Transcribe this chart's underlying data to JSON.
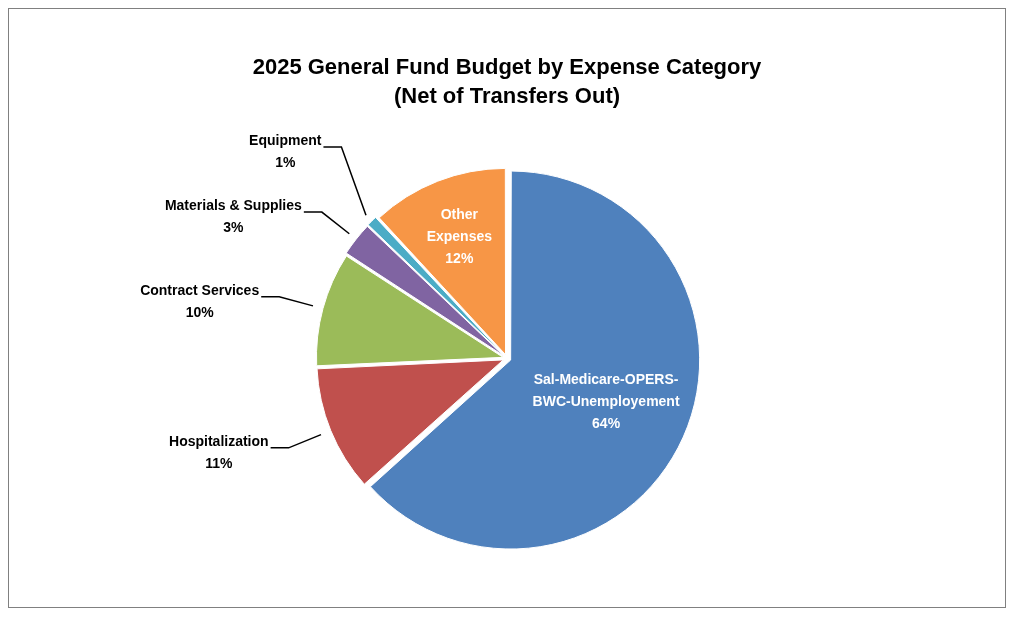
{
  "chart_data": {
    "type": "pie",
    "title": "2025 General Fund Budget by Expense Category",
    "subtitle": "(Net of Transfers Out)",
    "categories": [
      "Sal-Medicare-OPERS-BWC-Unemployement",
      "Hospitalization",
      "Contract Services",
      "Materials & Supplies",
      "Equipment",
      "Other Expenses"
    ],
    "values": [
      64,
      11,
      10,
      3,
      1,
      12
    ],
    "colors": [
      "#4f81bd",
      "#c0504d",
      "#9bbb59",
      "#8064a2",
      "#4bacc6",
      "#f79646"
    ],
    "value_labels": [
      "64%",
      "11%",
      "10%",
      "3%",
      "1%",
      "12%"
    ],
    "legend": false
  }
}
